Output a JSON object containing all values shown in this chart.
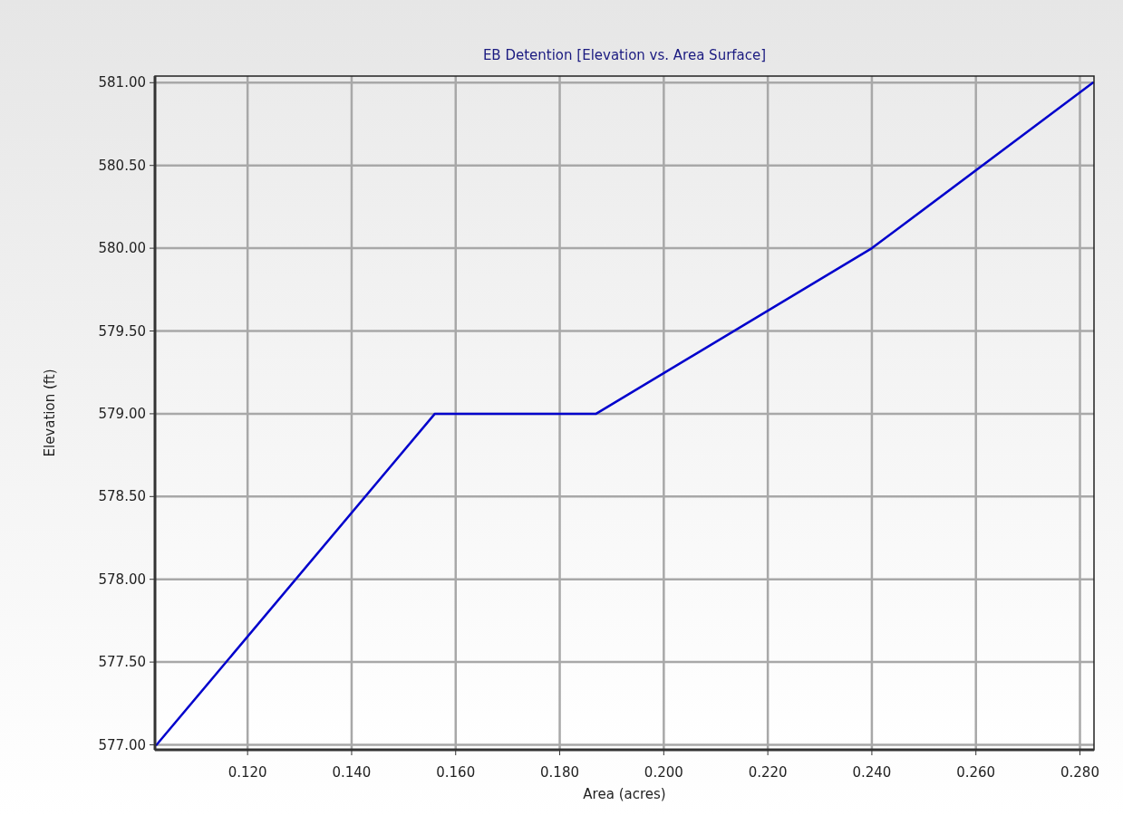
{
  "chart_data": {
    "type": "line",
    "title": "EB Detention [Elevation vs. Area Surface]",
    "xlabel": "Area (acres)",
    "ylabel": "Elevation (ft)",
    "x": [
      0.1025,
      0.156,
      0.187,
      0.24,
      0.2825
    ],
    "series": [
      {
        "color": "#0000cc",
        "values": [
          577,
          579,
          579,
          580,
          581
        ]
      }
    ],
    "xlim": [
      0.1022,
      0.2827
    ],
    "ylim": [
      576.97,
      581.04
    ],
    "xticks": [
      {
        "value": 0.12,
        "label": "0.120"
      },
      {
        "value": 0.14,
        "label": "0.140"
      },
      {
        "value": 0.16,
        "label": "0.160"
      },
      {
        "value": 0.18,
        "label": "0.180"
      },
      {
        "value": 0.2,
        "label": "0.200"
      },
      {
        "value": 0.22,
        "label": "0.220"
      },
      {
        "value": 0.24,
        "label": "0.240"
      },
      {
        "value": 0.26,
        "label": "0.260"
      },
      {
        "value": 0.28,
        "label": "0.280"
      }
    ],
    "yticks": [
      {
        "value": 577,
        "label": "577.00"
      },
      {
        "value": 577.5,
        "label": "577.50"
      },
      {
        "value": 578,
        "label": "578.00"
      },
      {
        "value": 578.5,
        "label": "578.50"
      },
      {
        "value": 579,
        "label": "579.00"
      },
      {
        "value": 579.5,
        "label": "579.50"
      },
      {
        "value": 580,
        "label": "580.00"
      },
      {
        "value": 580.5,
        "label": "580.50"
      },
      {
        "value": 581,
        "label": "581.00"
      }
    ],
    "grid": true,
    "marker": "none",
    "line_style": "solid"
  }
}
